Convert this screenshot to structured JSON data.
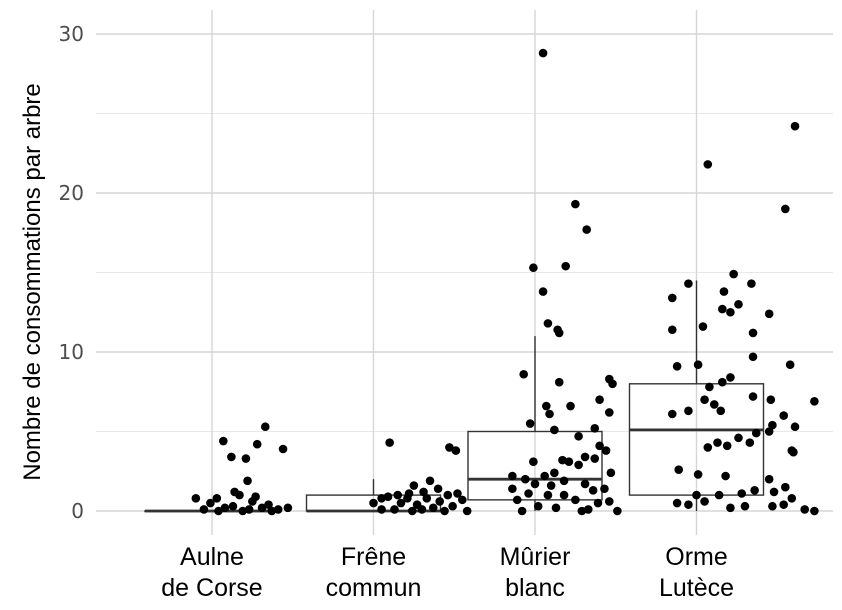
{
  "chart_data": {
    "type": "box",
    "title": "",
    "xlabel": "",
    "ylabel": "Nombre de consommations par arbre",
    "ylim": [
      -1.5,
      31.6
    ],
    "yticks": [
      "0",
      "10",
      "20",
      "30"
    ],
    "grid": true,
    "categories": [
      [
        "Aulne",
        "de Corse"
      ],
      [
        "Frêne",
        "commun"
      ],
      [
        "Mûrier",
        "blanc"
      ],
      [
        "Orme",
        "Lutèce"
      ]
    ],
    "boxes": [
      {
        "q1": 0,
        "median": 0,
        "q3": 0,
        "whisker_low": 0,
        "whisker_high": 0
      },
      {
        "q1": 0,
        "median": 0,
        "q3": 1,
        "whisker_low": 0,
        "whisker_high": 2
      },
      {
        "q1": 0.7,
        "median": 2,
        "q3": 5,
        "whisker_low": 0,
        "whisker_high": 11
      },
      {
        "q1": 1,
        "median": 5.1,
        "q3": 8,
        "whisker_low": 0,
        "whisker_high": 14.5
      }
    ],
    "points": [
      [
        [
          0.07,
          4.4
        ],
        [
          0.33,
          5.3
        ],
        [
          0.28,
          4.2
        ],
        [
          0.44,
          3.9
        ],
        [
          0.12,
          3.4
        ],
        [
          0.21,
          3.3
        ],
        [
          0.22,
          1.9
        ],
        [
          -0.1,
          0.8
        ],
        [
          0.03,
          0.8
        ],
        [
          0.17,
          1.0
        ],
        [
          0.25,
          0.6
        ],
        [
          0.35,
          0.4
        ],
        [
          0.47,
          0.2
        ],
        [
          0.41,
          0.1
        ],
        [
          0.08,
          0.2
        ],
        [
          -0.05,
          0.1
        ],
        [
          0.13,
          0.3
        ],
        [
          0.19,
          0.0
        ],
        [
          0.31,
          0.2
        ],
        [
          -0.01,
          0.5
        ],
        [
          0.27,
          0.9
        ],
        [
          0.14,
          1.2
        ],
        [
          0.04,
          0.0
        ],
        [
          0.37,
          0.0
        ],
        [
          0.23,
          0.1
        ]
      ],
      [
        [
          1.1,
          4.3
        ],
        [
          1.47,
          4.0
        ],
        [
          1.51,
          3.8
        ],
        [
          1.35,
          1.9
        ],
        [
          1.25,
          1.6
        ],
        [
          1.4,
          1.4
        ],
        [
          1.31,
          1.2
        ],
        [
          1.22,
          1.1
        ],
        [
          1.15,
          1.0
        ],
        [
          1.46,
          1.0
        ],
        [
          1.09,
          0.9
        ],
        [
          1.05,
          0.8
        ],
        [
          1.21,
          0.8
        ],
        [
          1.33,
          0.8
        ],
        [
          1.55,
          0.7
        ],
        [
          1.41,
          0.6
        ],
        [
          1.0,
          0.5
        ],
        [
          1.17,
          0.5
        ],
        [
          1.27,
          0.4
        ],
        [
          1.49,
          0.3
        ],
        [
          1.37,
          0.2
        ],
        [
          1.05,
          0.1
        ],
        [
          1.13,
          0.1
        ],
        [
          1.24,
          0.0
        ],
        [
          1.44,
          0.0
        ],
        [
          1.58,
          0.0
        ],
        [
          1.3,
          0.1
        ],
        [
          1.52,
          1.1
        ]
      ],
      [
        [
          2.05,
          28.8
        ],
        [
          2.25,
          19.3
        ],
        [
          2.32,
          17.7
        ],
        [
          2.19,
          15.4
        ],
        [
          1.99,
          15.3
        ],
        [
          2.05,
          13.8
        ],
        [
          2.08,
          11.8
        ],
        [
          2.14,
          11.4
        ],
        [
          2.15,
          11.2
        ],
        [
          1.93,
          8.6
        ],
        [
          2.15,
          8.1
        ],
        [
          2.46,
          8.3
        ],
        [
          2.48,
          8.0
        ],
        [
          2.4,
          7.0
        ],
        [
          2.22,
          6.6
        ],
        [
          2.07,
          6.6
        ],
        [
          2.09,
          6.1
        ],
        [
          2.46,
          6.2
        ],
        [
          1.97,
          5.5
        ],
        [
          2.12,
          5.1
        ],
        [
          2.37,
          5.2
        ],
        [
          2.27,
          4.7
        ],
        [
          2.4,
          4.1
        ],
        [
          2.44,
          3.8
        ],
        [
          2.31,
          3.4
        ],
        [
          2.37,
          3.3
        ],
        [
          1.99,
          3.1
        ],
        [
          2.21,
          3.1
        ],
        [
          2.27,
          2.9
        ],
        [
          2.47,
          2.4
        ],
        [
          2.12,
          2.4
        ],
        [
          1.86,
          2.2
        ],
        [
          2.06,
          2.2
        ],
        [
          1.94,
          2.0
        ],
        [
          2.0,
          1.7
        ],
        [
          2.18,
          1.9
        ],
        [
          2.1,
          1.6
        ],
        [
          2.31,
          1.7
        ],
        [
          2.36,
          1.3
        ],
        [
          1.86,
          1.4
        ],
        [
          1.96,
          1.1
        ],
        [
          2.08,
          1.0
        ],
        [
          2.18,
          1.0
        ],
        [
          2.25,
          0.7
        ],
        [
          2.39,
          0.5
        ],
        [
          2.46,
          0.6
        ],
        [
          2.02,
          0.3
        ],
        [
          2.13,
          0.2
        ],
        [
          2.29,
          0.0
        ],
        [
          1.92,
          0.0
        ],
        [
          2.33,
          0.1
        ],
        [
          2.51,
          0.0
        ],
        [
          1.89,
          0.7
        ],
        [
          2.43,
          1.4
        ],
        [
          2.17,
          3.2
        ]
      ],
      [
        [
          3.07,
          21.8
        ],
        [
          3.61,
          24.2
        ],
        [
          3.55,
          19.0
        ],
        [
          3.23,
          14.9
        ],
        [
          2.95,
          14.3
        ],
        [
          3.34,
          14.3
        ],
        [
          2.85,
          13.4
        ],
        [
          3.17,
          13.8
        ],
        [
          3.26,
          13.0
        ],
        [
          3.16,
          12.7
        ],
        [
          3.21,
          12.5
        ],
        [
          3.45,
          12.4
        ],
        [
          2.85,
          11.4
        ],
        [
          3.04,
          11.6
        ],
        [
          3.35,
          11.2
        ],
        [
          2.88,
          9.1
        ],
        [
          3.01,
          9.2
        ],
        [
          3.35,
          9.7
        ],
        [
          3.58,
          9.2
        ],
        [
          3.16,
          8.1
        ],
        [
          3.21,
          8.4
        ],
        [
          3.08,
          7.8
        ],
        [
          3.05,
          7.0
        ],
        [
          3.11,
          6.7
        ],
        [
          3.35,
          7.2
        ],
        [
          3.46,
          7.0
        ],
        [
          3.73,
          6.9
        ],
        [
          2.85,
          6.1
        ],
        [
          2.95,
          6.3
        ],
        [
          3.15,
          6.3
        ],
        [
          3.54,
          6.0
        ],
        [
          3.47,
          5.4
        ],
        [
          3.61,
          5.3
        ],
        [
          3.45,
          5.0
        ],
        [
          3.37,
          4.9
        ],
        [
          3.26,
          4.6
        ],
        [
          3.13,
          4.3
        ],
        [
          3.19,
          4.1
        ],
        [
          3.33,
          4.3
        ],
        [
          3.07,
          4.0
        ],
        [
          3.59,
          3.8
        ],
        [
          3.6,
          3.7
        ],
        [
          2.89,
          2.6
        ],
        [
          3.01,
          2.3
        ],
        [
          3.18,
          2.2
        ],
        [
          3.45,
          2.0
        ],
        [
          3.55,
          1.5
        ],
        [
          3.48,
          1.2
        ],
        [
          3.14,
          1.0
        ],
        [
          3.0,
          1.0
        ],
        [
          3.28,
          1.1
        ],
        [
          3.36,
          1.3
        ],
        [
          3.05,
          0.6
        ],
        [
          2.95,
          0.4
        ],
        [
          2.88,
          0.5
        ],
        [
          3.21,
          0.2
        ],
        [
          3.3,
          0.3
        ],
        [
          3.47,
          0.3
        ],
        [
          3.54,
          0.4
        ],
        [
          3.67,
          0.1
        ],
        [
          3.73,
          0.0
        ],
        [
          3.59,
          0.8
        ]
      ]
    ]
  }
}
